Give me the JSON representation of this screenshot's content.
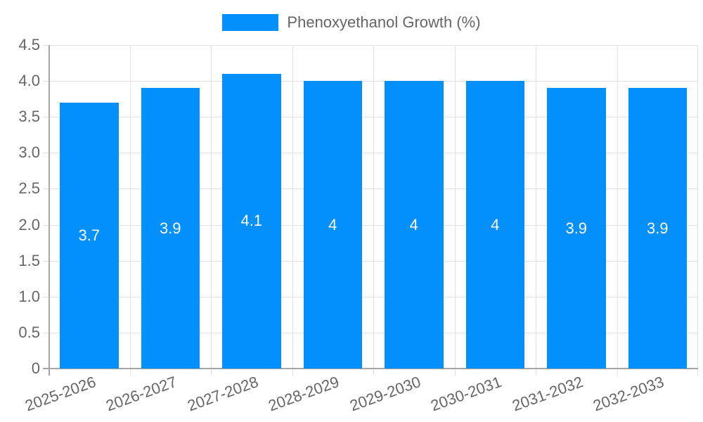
{
  "chart_data": {
    "type": "bar",
    "title": "",
    "xlabel": "",
    "ylabel": "",
    "categories": [
      "2025-2026",
      "2026-2027",
      "2027-2028",
      "2028-2029",
      "2029-2030",
      "2030-2031",
      "2031-2032",
      "2032-2033"
    ],
    "series": [
      {
        "name": "Phenoxyethanol Growth (%)",
        "values": [
          3.7,
          3.9,
          4.1,
          4,
          4,
          4,
          3.9,
          3.9
        ],
        "color": "#038ffc"
      }
    ],
    "data_labels": [
      "3.7",
      "3.9",
      "4.1",
      "4",
      "4",
      "4",
      "3.9",
      "3.9"
    ],
    "ylim": [
      0,
      4.5
    ],
    "yticks": [
      "0",
      "0.5",
      "1.0",
      "1.5",
      "2.0",
      "2.5",
      "3.0",
      "3.5",
      "4.0",
      "4.5"
    ],
    "grid": true,
    "legend_position": "top"
  },
  "legend": {
    "label": "Phenoxyethanol Growth (%)"
  }
}
